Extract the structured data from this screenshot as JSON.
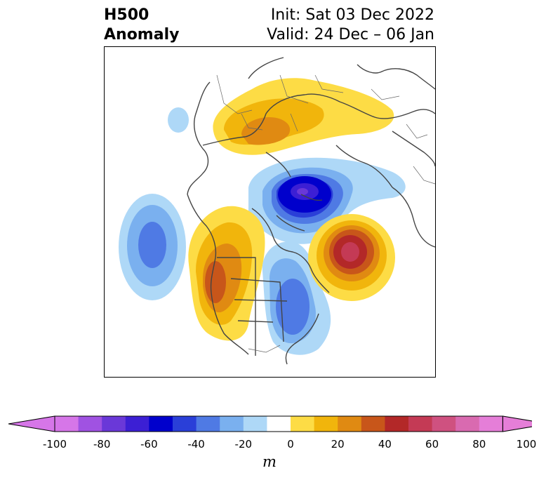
{
  "title": {
    "left_line1": "H500",
    "left_line2": "Anomaly",
    "right_line1": "Init: Sat 03 Dec 2022",
    "right_line2": "Valid: 24 Dec – 06 Jan"
  },
  "map": {
    "variable": "500 hPa geopotential height anomaly",
    "region": "North America / North Pacific / Arctic (polar stereographic)",
    "features": [
      {
        "name": "Pacific trough",
        "sign": "negative",
        "peak_m": -50
      },
      {
        "name": "Western North America ridge",
        "sign": "positive",
        "peak_m": 50
      },
      {
        "name": "Arctic / Greenland-Siberia low",
        "sign": "negative",
        "peak_m": -70
      },
      {
        "name": "Eastern North America trough",
        "sign": "negative",
        "peak_m": -40
      },
      {
        "name": "North Atlantic ridge",
        "sign": "positive",
        "peak_m": 70
      },
      {
        "name": "Eurasian ridge",
        "sign": "positive",
        "peak_m": 40
      }
    ]
  },
  "colorbar": {
    "ticks": [
      "-100",
      "-80",
      "-60",
      "-40",
      "-20",
      "0",
      "20",
      "40",
      "60",
      "80",
      "100"
    ],
    "units": "m",
    "levels": [
      -100,
      -90,
      -80,
      -70,
      -60,
      -50,
      -40,
      -30,
      -20,
      -10,
      10,
      20,
      30,
      40,
      50,
      60,
      70,
      80,
      90,
      100
    ],
    "colors": [
      "#d676e8",
      "#a052e2",
      "#6a38d8",
      "#3c1fd4",
      "#0000cc",
      "#2a3fd8",
      "#4f7ae4",
      "#7ab0ef",
      "#aed8f7",
      "#ffffff",
      "#fddc45",
      "#f1b50c",
      "#e08a12",
      "#c8561a",
      "#b32828",
      "#c43a55",
      "#cf5180",
      "#d96ab0",
      "#e57ed8"
    ],
    "extend_low_color": "#d676e8",
    "extend_high_color": "#e57ed8"
  }
}
